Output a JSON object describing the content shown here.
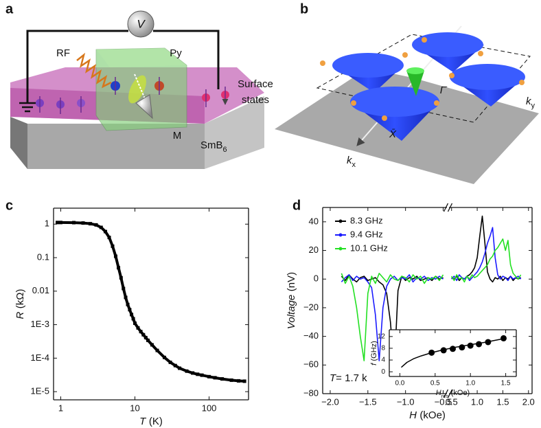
{
  "panel_labels": [
    "a",
    "b",
    "c",
    "d"
  ],
  "diagram_a": {
    "labels": {
      "voltmeter": "V",
      "rf": "RF",
      "py": "Py",
      "surface": [
        "Surface",
        "states"
      ],
      "magnetization": "M",
      "material": {
        "text": "SmB",
        "sub": "6"
      }
    }
  },
  "diagram_b": {
    "labels": {
      "gamma": "Γ̄",
      "x_point": "X̄",
      "ky": {
        "text": "k",
        "sub": "y"
      },
      "kx": {
        "text": "k",
        "sub": "x"
      }
    }
  },
  "chart_data": [
    {
      "type": "line",
      "xscale": "log",
      "yscale": "log",
      "xlabel": {
        "symbol": "R",
        "unit": "(kΩ)"
      },
      "xaxis_label": {
        "symbol": "T",
        "unit": "(K)"
      },
      "xlim": [
        0.8,
        340
      ],
      "ylim": [
        5.7e-06,
        3
      ],
      "xticks": [
        1,
        10,
        100
      ],
      "yticks": [
        {
          "value": 1e-05,
          "label": "1E-5"
        },
        {
          "value": 0.0001,
          "label": "1E-4"
        },
        {
          "value": 0.001,
          "label": "1E-3"
        },
        0.01,
        0.1,
        1
      ],
      "x": [
        0.9,
        1,
        1.5,
        2,
        2.5,
        3,
        3.5,
        4,
        4.5,
        5,
        5.5,
        6,
        6.5,
        7,
        7.5,
        8,
        8.5,
        9,
        9.5,
        10,
        11,
        12,
        13,
        14,
        15,
        17,
        20,
        25,
        30,
        35,
        40,
        50,
        60,
        70,
        80,
        100,
        120,
        150,
        200,
        250,
        300
      ],
      "series": [
        {
          "color": "#000000",
          "values": [
            1.12,
            1.12,
            1.11,
            1.08,
            1.03,
            0.95,
            0.8,
            0.6,
            0.4,
            0.22,
            0.11,
            0.05,
            0.025,
            0.012,
            0.0065,
            0.004,
            0.0028,
            0.002,
            0.0015,
            0.0011,
            0.0008,
            0.00062,
            0.0005,
            0.00041,
            0.00034,
            0.00025,
            0.00017,
            0.000105,
            7.5e-05,
            6e-05,
            5e-05,
            4.1e-05,
            3.6e-05,
            3.3e-05,
            3.1e-05,
            2.8e-05,
            2.6e-05,
            2.4e-05,
            2.2e-05,
            2.1e-05,
            2.05e-05
          ]
        }
      ]
    },
    {
      "type": "line",
      "broken_x": true,
      "xlabel": {
        "symbol": "Voltage",
        "unit": "(nV)"
      },
      "xaxis_label": {
        "symbol": "H",
        "unit": "(kOe)"
      },
      "xlim": [
        [
          -2.1,
          -0.45
        ],
        [
          0.45,
          2.07
        ]
      ],
      "ylim": [
        -80,
        50
      ],
      "xticks": [
        {
          "value": -2,
          "label": "−2.0"
        },
        {
          "value": -1.5,
          "label": "−1.5"
        },
        {
          "value": -1,
          "label": "−1.0"
        },
        {
          "value": -0.5,
          "label": "−0.5"
        },
        0.5,
        {
          "value": 1,
          "label": "1.0"
        },
        1.5,
        {
          "value": 2,
          "label": "2.0"
        }
      ],
      "yticks": [
        {
          "value": -80,
          "label": "−80"
        },
        {
          "value": -60,
          "label": "−60"
        },
        {
          "value": -40,
          "label": "−40"
        },
        {
          "value": -20,
          "label": "−20"
        },
        0,
        20,
        40
      ],
      "legend": "upper left",
      "annotation": {
        "symbol": "T",
        "text": "= 1.7 k"
      },
      "x": [
        -1.85,
        -1.8,
        -1.75,
        -1.7,
        -1.65,
        -1.6,
        -1.55,
        -1.5,
        -1.45,
        -1.4,
        -1.35,
        -1.3,
        -1.25,
        -1.2,
        -1.15,
        -1.1,
        -1.05,
        -1,
        -0.95,
        -0.9,
        -0.85,
        -0.8,
        -0.75,
        -0.7,
        -0.65,
        -0.6,
        -0.55,
        -0.5,
        0.5,
        0.55,
        0.6,
        0.65,
        0.7,
        0.75,
        0.8,
        0.85,
        0.9,
        0.95,
        1,
        1.05,
        1.1,
        1.15,
        1.2,
        1.25,
        1.3,
        1.35,
        1.4,
        1.45,
        1.5,
        1.55,
        1.6,
        1.65,
        1.7,
        1.75,
        1.8,
        1.85
      ],
      "series": [
        {
          "name": "8.3 GHz",
          "color": "#000000",
          "values": [
            2,
            -1,
            3,
            0,
            -2,
            1,
            2,
            -1,
            0,
            1,
            -2,
            -4,
            -10,
            -30,
            -64,
            -8,
            2,
            -1,
            1,
            0,
            2,
            -1,
            0,
            1,
            -1,
            2,
            0,
            1,
            1,
            0,
            2,
            -1,
            1,
            0,
            2,
            3,
            5,
            8,
            15,
            30,
            44,
            25,
            5,
            0,
            -2,
            1,
            0,
            2,
            -1,
            1,
            0,
            2,
            -1,
            1,
            0,
            1
          ]
        },
        {
          "name": "9.4 GHz",
          "color": "#1a1aff",
          "values": [
            -2,
            1,
            3,
            -1,
            2,
            0,
            1,
            -2,
            -6,
            -25,
            -57,
            -20,
            -5,
            0,
            2,
            -1,
            1,
            0,
            3,
            -2,
            1,
            0,
            2,
            -1,
            1,
            0,
            2,
            0,
            0,
            2,
            -1,
            3,
            1,
            0,
            2,
            -1,
            1,
            3,
            5,
            8,
            12,
            18,
            25,
            30,
            36,
            15,
            3,
            0,
            2,
            1,
            -1,
            2,
            0,
            1,
            2,
            0
          ]
        },
        {
          "name": "10.1 GHz",
          "color": "#22e022",
          "values": [
            4,
            -3,
            2,
            -5,
            -20,
            -40,
            -57,
            -10,
            2,
            -3,
            4,
            1,
            -2,
            3,
            0,
            -1,
            2,
            1,
            -2,
            3,
            0,
            2,
            -3,
            1,
            0,
            2,
            -1,
            3,
            2,
            -1,
            3,
            0,
            1,
            -2,
            2,
            0,
            3,
            1,
            2,
            4,
            6,
            8,
            10,
            14,
            16,
            20,
            22,
            25,
            28,
            20,
            27,
            10,
            4,
            2,
            0,
            3
          ]
        }
      ]
    },
    {
      "type": "scatter",
      "xlabel": {
        "symbol": "f",
        "unit": "(GHz)"
      },
      "xaxis_label": {
        "symbol": "H",
        "sub": "res",
        "unit": "(kOe)"
      },
      "xlim": [
        -0.15,
        1.65
      ],
      "ylim": [
        -1.6,
        14.3
      ],
      "xticks": [
        {
          "value": 0,
          "label": "0.0"
        },
        0.5,
        {
          "value": 1,
          "label": "1.0"
        },
        1.5
      ],
      "yticks": [
        0,
        4,
        8,
        12
      ],
      "x": [
        0.45,
        0.62,
        0.75,
        0.88,
        1.0,
        1.12,
        1.25,
        1.47
      ],
      "values": [
        6.5,
        7.3,
        7.8,
        8.3,
        8.9,
        9.4,
        10.1,
        11.4
      ],
      "color": "#000000",
      "fit": {
        "x": [
          0.02,
          0.1,
          0.2,
          0.3,
          0.45,
          0.6,
          0.8,
          1.0,
          1.2,
          1.5
        ],
        "values": [
          1.5,
          3.2,
          4.5,
          5.4,
          6.5,
          7.4,
          8.4,
          9.2,
          10.0,
          11.4
        ]
      }
    }
  ]
}
